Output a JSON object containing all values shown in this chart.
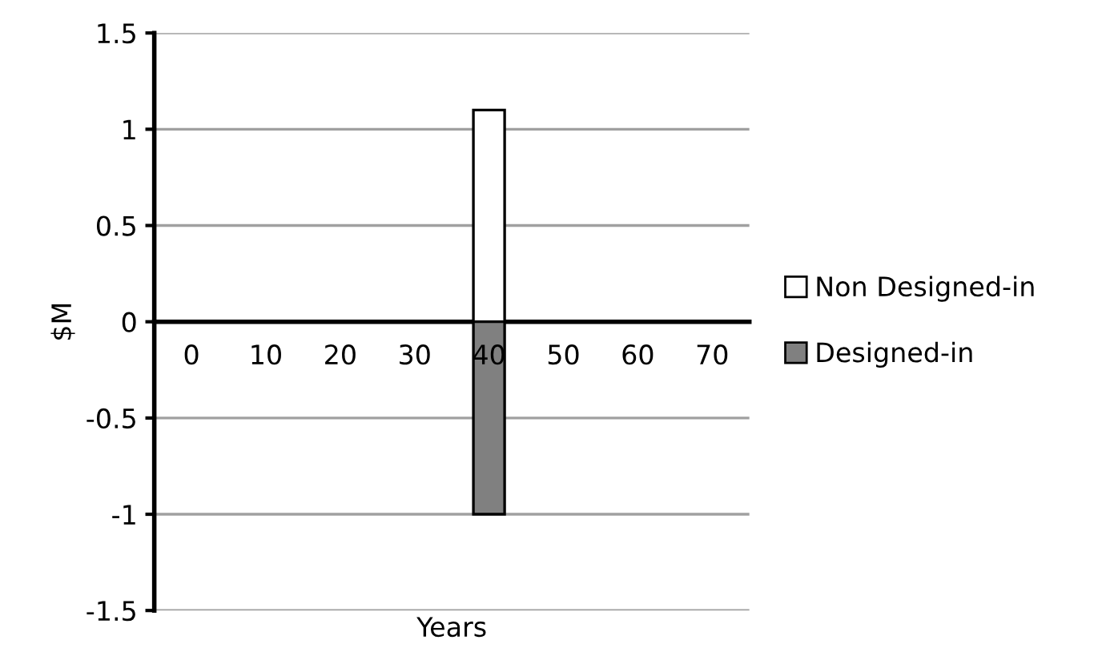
{
  "chart_data": {
    "type": "bar",
    "stacked": true,
    "xlabel": "Years",
    "ylabel": "$M",
    "categories": [
      "0",
      "10",
      "20",
      "30",
      "40",
      "50",
      "60",
      "70"
    ],
    "series": [
      {
        "name": "Non Designed-in",
        "color": "#ffffff",
        "values": [
          null,
          null,
          null,
          null,
          1.1,
          null,
          null,
          null
        ]
      },
      {
        "name": "Designed-in",
        "color": "#808080",
        "values": [
          null,
          null,
          null,
          null,
          -1.0,
          null,
          null,
          null
        ]
      }
    ],
    "ylim": [
      -1.5,
      1.5
    ],
    "yticks": [
      1.5,
      1,
      0.5,
      0,
      -0.5,
      -1,
      -1.5
    ],
    "grid": "y",
    "legend": "right"
  }
}
